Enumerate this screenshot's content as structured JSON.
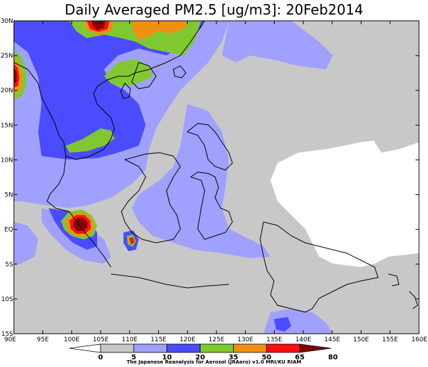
{
  "title": "Daily Averaged PM2.5 [ug/m3]: 20Feb2014",
  "footer": "The Japanese Reanalysis for Aerosol (JRAero) v1.0 MRI/KU RIAM",
  "map": {
    "lon_range": [
      90,
      160
    ],
    "lat_range": [
      -15,
      30
    ],
    "lon_ticks": [
      "90E",
      "95E",
      "100E",
      "105E",
      "110E",
      "115E",
      "120E",
      "125E",
      "130E",
      "135E",
      "140E",
      "145E",
      "150E",
      "155E",
      "160E"
    ],
    "lat_ticks": [
      "30N",
      "25N",
      "20N",
      "15N",
      "10N",
      "5N",
      "EQ",
      "5S",
      "10S",
      "15S"
    ]
  },
  "colorbar": {
    "levels": [
      "0",
      "5",
      "10",
      "20",
      "35",
      "50",
      "65",
      "80"
    ],
    "colors": {
      "c0": "#ffffff",
      "c5": "#c8c8c8",
      "c10": "#a0a0ff",
      "c20": "#4b4bff",
      "c35": "#80c830",
      "c50": "#f09010",
      "c65": "#ff1010",
      "c80": "#800000"
    }
  }
}
